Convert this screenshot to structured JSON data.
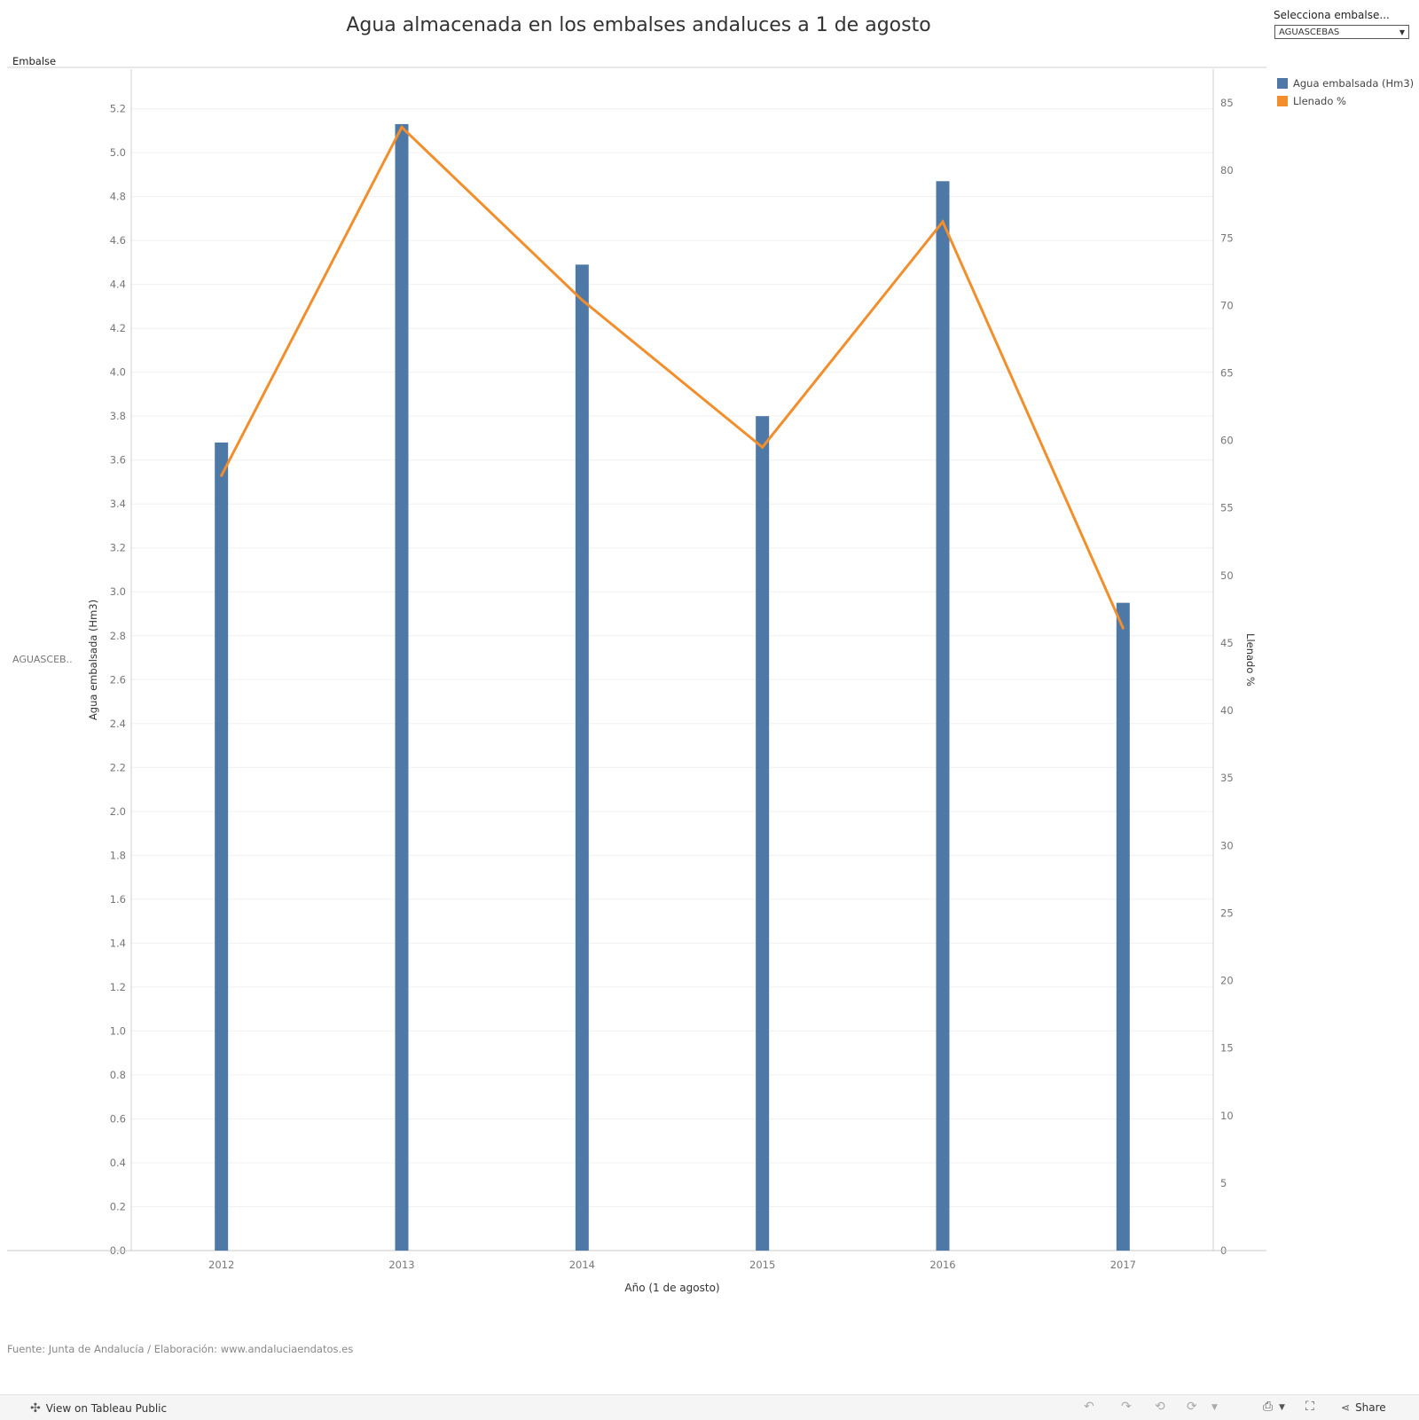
{
  "title": "Agua almacenada en los embalses andaluces a 1 de agosto",
  "filter": {
    "label": "Selecciona embalse...",
    "value": "AGUASCEBAS"
  },
  "row_header": "Embalse",
  "row_label": "AGUASCEB..",
  "legend": [
    {
      "label": "Agua embalsada (Hm3)",
      "color": "#4e79a7"
    },
    {
      "label": "Llenado %",
      "color": "#f28e2b"
    }
  ],
  "source": "Fuente: Junta de Andalucía / Elaboración: www.andaluciaendatos.es",
  "footer": {
    "view_link": "View on Tableau Public",
    "share_label": "Share"
  },
  "chart_data": {
    "type": "bar",
    "categories": [
      "2012",
      "2013",
      "2014",
      "2015",
      "2016",
      "2017"
    ],
    "series": [
      {
        "name": "Agua embalsada (Hm3)",
        "type": "bar",
        "axis": "left",
        "color": "#4e79a7",
        "values": [
          3.68,
          5.13,
          4.49,
          3.8,
          4.87,
          2.95
        ]
      },
      {
        "name": "Llenado %",
        "type": "line",
        "axis": "right",
        "color": "#f28e2b",
        "values": [
          57.4,
          83.2,
          70.4,
          59.5,
          76.2,
          46.1
        ]
      }
    ],
    "xlabel": "Año (1 de agosto)",
    "ylabel": "Agua embalsada (Hm3)",
    "y2label": "Llenado %",
    "ylim": [
      0,
      5.38
    ],
    "y2lim": [
      0,
      87.5
    ],
    "yticks": [
      "0.0",
      "0.2",
      "0.4",
      "0.6",
      "0.8",
      "1.0",
      "1.2",
      "1.4",
      "1.6",
      "1.8",
      "2.0",
      "2.2",
      "2.4",
      "2.6",
      "2.8",
      "3.0",
      "3.2",
      "3.4",
      "3.6",
      "3.8",
      "4.0",
      "4.2",
      "4.4",
      "4.6",
      "4.8",
      "5.0",
      "5.2"
    ],
    "y2ticks": [
      "0",
      "5",
      "10",
      "15",
      "20",
      "25",
      "30",
      "35",
      "40",
      "45",
      "50",
      "55",
      "60",
      "65",
      "70",
      "75",
      "80",
      "85"
    ],
    "grid": true
  }
}
